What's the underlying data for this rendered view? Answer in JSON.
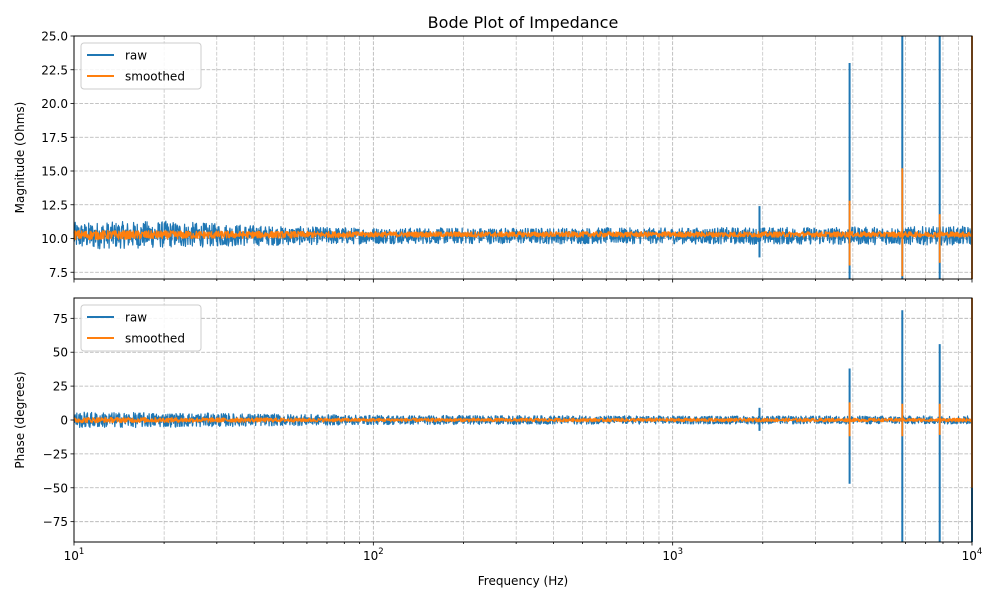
{
  "chart_data": [
    {
      "type": "line",
      "title": "Bode Plot of Impedance",
      "xlabel": "",
      "ylabel": "Magnitude (Ohms)",
      "xscale": "log",
      "xlim": [
        10,
        10000
      ],
      "ylim": [
        7,
        25
      ],
      "yticks": [
        7.5,
        10.0,
        12.5,
        15.0,
        17.5,
        20.0,
        22.5,
        25.0
      ],
      "ytick_labels": [
        "7.5",
        "10.0",
        "12.5",
        "15.0",
        "17.5",
        "20.0",
        "22.5",
        "25.0"
      ],
      "grid": true,
      "legend": "top-left",
      "series": [
        {
          "name": "raw",
          "color": "#1f77b4",
          "baseline": 10.2,
          "noise_band": [
            {
              "x": 10,
              "low": 9.2,
              "high": 11.2
            },
            {
              "x": 20,
              "low": 9.3,
              "high": 11.3
            },
            {
              "x": 50,
              "low": 9.5,
              "high": 10.9
            },
            {
              "x": 100,
              "low": 9.6,
              "high": 10.8
            },
            {
              "x": 1000,
              "low": 9.6,
              "high": 10.8
            },
            {
              "x": 10000,
              "low": 9.5,
              "high": 10.9
            }
          ],
          "spikes": [
            {
              "x": 1950,
              "low": 8.6,
              "high": 12.4
            },
            {
              "x": 3900,
              "low": 7.0,
              "high": 23.0
            },
            {
              "x": 5850,
              "low": 7.0,
              "high": 25.0
            },
            {
              "x": 7800,
              "low": 7.0,
              "high": 25.0
            },
            {
              "x": 10000,
              "low": 7.0,
              "high": 25.0
            }
          ]
        },
        {
          "name": "smoothed",
          "color": "#ff7f0e",
          "baseline": 10.3,
          "noise_band": [
            {
              "x": 10,
              "low": 9.9,
              "high": 10.6
            },
            {
              "x": 100,
              "low": 10.1,
              "high": 10.5
            },
            {
              "x": 10000,
              "low": 10.1,
              "high": 10.5
            }
          ],
          "spikes": [
            {
              "x": 3900,
              "low": 8.0,
              "high": 12.8
            },
            {
              "x": 5850,
              "low": 7.2,
              "high": 15.2
            },
            {
              "x": 7800,
              "low": 8.2,
              "high": 11.8
            },
            {
              "x": 10000,
              "low": 7.0,
              "high": 25.0
            }
          ]
        }
      ]
    },
    {
      "type": "line",
      "title": "",
      "xlabel": "Frequency (Hz)",
      "ylabel": "Phase (degrees)",
      "xscale": "log",
      "xlim": [
        10,
        10000
      ],
      "ylim": [
        -90,
        90
      ],
      "yticks": [
        -75,
        -50,
        -25,
        0,
        25,
        50,
        75
      ],
      "ytick_labels": [
        "−75",
        "−50",
        "−25",
        "0",
        "25",
        "50",
        "75"
      ],
      "xtick_labels": [
        {
          "x": 10,
          "base": "10",
          "exp": "1"
        },
        {
          "x": 100,
          "base": "10",
          "exp": "2"
        },
        {
          "x": 1000,
          "base": "10",
          "exp": "3"
        },
        {
          "x": 10000,
          "base": "10",
          "exp": "4"
        }
      ],
      "grid": true,
      "legend": "top-left",
      "series": [
        {
          "name": "raw",
          "color": "#1f77b4",
          "baseline": 0,
          "noise_band": [
            {
              "x": 10,
              "low": -6,
              "high": 6
            },
            {
              "x": 30,
              "low": -5,
              "high": 5
            },
            {
              "x": 100,
              "low": -3.5,
              "high": 3.5
            },
            {
              "x": 1000,
              "low": -3,
              "high": 3
            },
            {
              "x": 10000,
              "low": -3,
              "high": 3
            }
          ],
          "spikes": [
            {
              "x": 1950,
              "low": -8,
              "high": 9
            },
            {
              "x": 3900,
              "low": -47,
              "high": 38
            },
            {
              "x": 5850,
              "low": -90,
              "high": 81
            },
            {
              "x": 7800,
              "low": -90,
              "high": 56
            },
            {
              "x": 10000,
              "low": -90,
              "high": 90
            }
          ]
        },
        {
          "name": "smoothed",
          "color": "#ff7f0e",
          "baseline": 0,
          "noise_band": [
            {
              "x": 10,
              "low": -2,
              "high": 2
            },
            {
              "x": 100,
              "low": -1.2,
              "high": 1.2
            },
            {
              "x": 10000,
              "low": -1.2,
              "high": 1.2
            }
          ],
          "spikes": [
            {
              "x": 3900,
              "low": -12,
              "high": 13
            },
            {
              "x": 5850,
              "low": -12,
              "high": 12
            },
            {
              "x": 7800,
              "low": -11,
              "high": 12
            },
            {
              "x": 10000,
              "low": -50,
              "high": 90
            }
          ]
        }
      ]
    }
  ]
}
